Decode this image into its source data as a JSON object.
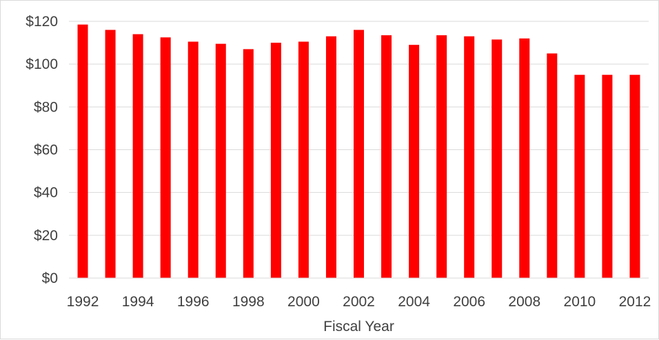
{
  "chart_data": {
    "type": "bar",
    "title": "",
    "xlabel": "Fiscal Year",
    "ylabel": "",
    "categories": [
      "1992",
      "1993",
      "1994",
      "1995",
      "1996",
      "1997",
      "1998",
      "1999",
      "2000",
      "2001",
      "2002",
      "2003",
      "2004",
      "2005",
      "2006",
      "2007",
      "2008",
      "2009",
      "2010",
      "2011",
      "2012"
    ],
    "x_tick_labels": [
      "1992",
      "1994",
      "1996",
      "1998",
      "2000",
      "2002",
      "2004",
      "2006",
      "2008",
      "2010",
      "2012"
    ],
    "values": [
      118.5,
      116,
      114,
      112.5,
      110.5,
      109.5,
      107,
      110,
      110.5,
      113,
      116,
      113.5,
      109,
      113.5,
      113,
      111.5,
      112,
      105,
      95,
      95,
      95
    ],
    "y_tick_labels": [
      "$0",
      "$20",
      "$40",
      "$60",
      "$80",
      "$100",
      "$120"
    ],
    "ylim": [
      0,
      120
    ],
    "grid": true,
    "legend": "none",
    "bar_color": "#ff0000",
    "grid_color": "#d9d9d9"
  }
}
